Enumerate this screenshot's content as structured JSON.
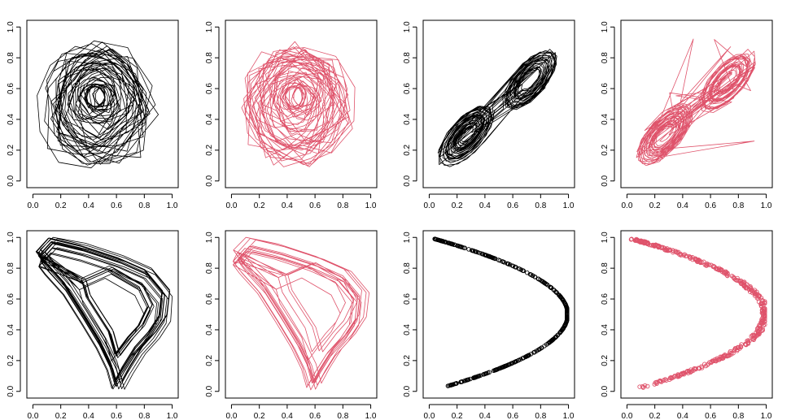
{
  "figure": {
    "background": "#ffffff",
    "colors": {
      "black": "#000000",
      "red": "#DF536B"
    }
  },
  "chart_data": [
    {
      "type": "line",
      "color": "#000000",
      "shape": "spiral",
      "xlim": [
        0,
        1
      ],
      "ylim": [
        0,
        1
      ],
      "grid": false,
      "center": [
        0.47,
        0.56
      ],
      "radius_range": [
        0.05,
        0.42
      ],
      "xticks": [
        "0.0",
        "0.2",
        "0.4",
        "0.6",
        "0.8",
        "1.0"
      ],
      "yticks": [
        "0.0",
        "0.2",
        "0.4",
        "0.6",
        "0.8",
        "1.0"
      ]
    },
    {
      "type": "line",
      "color": "#DF536B",
      "shape": "spiral",
      "xlim": [
        0,
        1
      ],
      "ylim": [
        0,
        1
      ],
      "grid": false,
      "center": [
        0.47,
        0.56
      ],
      "radius_range": [
        0.05,
        0.42
      ],
      "xticks": [
        "0.0",
        "0.2",
        "0.4",
        "0.6",
        "0.8",
        "1.0"
      ],
      "yticks": [
        "0.0",
        "0.2",
        "0.4",
        "0.6",
        "0.8",
        "1.0"
      ]
    },
    {
      "type": "line",
      "color": "#000000",
      "shape": "double-scroll",
      "xlim": [
        0,
        1
      ],
      "ylim": [
        0,
        1
      ],
      "grid": false,
      "lobes": [
        [
          0.27,
          0.3
        ],
        [
          0.72,
          0.65
        ]
      ],
      "xticks": [
        "0.0",
        "0.2",
        "0.4",
        "0.6",
        "0.8",
        "1.0"
      ],
      "yticks": [
        "0.0",
        "0.2",
        "0.4",
        "0.6",
        "0.8",
        "1.0"
      ]
    },
    {
      "type": "line",
      "color": "#DF536B",
      "shape": "double-scroll",
      "xlim": [
        0,
        1
      ],
      "ylim": [
        0,
        1
      ],
      "grid": false,
      "lobes": [
        [
          0.27,
          0.3
        ],
        [
          0.72,
          0.65
        ]
      ],
      "xticks": [
        "0.0",
        "0.2",
        "0.4",
        "0.6",
        "0.8",
        "1.0"
      ],
      "yticks": [
        "0.0",
        "0.2",
        "0.4",
        "0.6",
        "0.8",
        "1.0"
      ]
    },
    {
      "type": "line",
      "color": "#000000",
      "shape": "hook-loop",
      "xlim": [
        0,
        1
      ],
      "ylim": [
        0,
        1
      ],
      "grid": false,
      "xticks": [
        "0.0",
        "0.2",
        "0.4",
        "0.6",
        "0.8",
        "1.0"
      ],
      "yticks": [
        "0.0",
        "0.2",
        "0.4",
        "0.6",
        "0.8",
        "1.0"
      ]
    },
    {
      "type": "line",
      "color": "#DF536B",
      "shape": "hook-loop",
      "xlim": [
        0,
        1
      ],
      "ylim": [
        0,
        1
      ],
      "grid": false,
      "xticks": [
        "0.0",
        "0.2",
        "0.4",
        "0.6",
        "0.8",
        "1.0"
      ],
      "yticks": [
        "0.0",
        "0.2",
        "0.4",
        "0.6",
        "0.8",
        "1.0"
      ]
    },
    {
      "type": "scatter",
      "color": "#000000",
      "shape": "logistic-parabola",
      "xlim": [
        0,
        1
      ],
      "ylim": [
        0,
        1
      ],
      "grid": false,
      "xticks": [
        "0.0",
        "0.2",
        "0.4",
        "0.6",
        "0.8",
        "1.0"
      ],
      "yticks": [
        "0.0",
        "0.2",
        "0.4",
        "0.6",
        "0.8",
        "1.0"
      ]
    },
    {
      "type": "scatter",
      "color": "#DF536B",
      "shape": "logistic-parabola",
      "xlim": [
        0,
        1
      ],
      "ylim": [
        0,
        1
      ],
      "grid": false,
      "xticks": [
        "0.0",
        "0.2",
        "0.4",
        "0.6",
        "0.8",
        "1.0"
      ],
      "yticks": [
        "0.0",
        "0.2",
        "0.4",
        "0.6",
        "0.8",
        "1.0"
      ]
    }
  ]
}
